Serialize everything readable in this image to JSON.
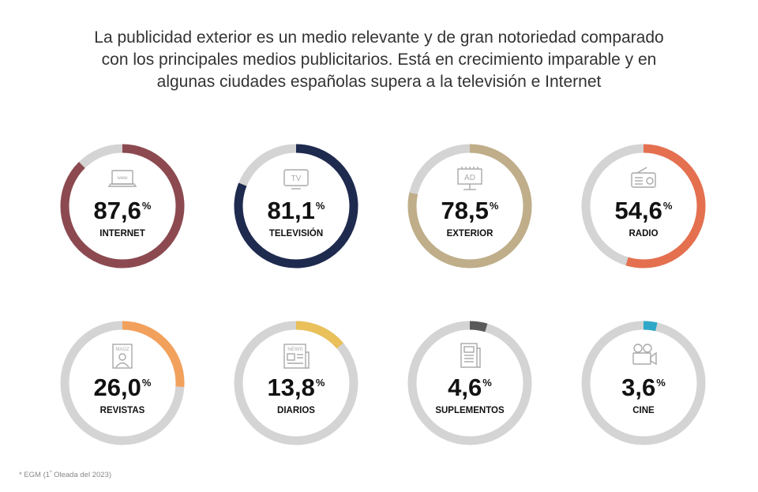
{
  "heading": {
    "line1": "La publicidad exterior es un medio relevante y de gran notoriedad comparado",
    "line2": "con los principales medios publicitarios. Está en crecimiento imparable y en",
    "line3": "algunas ciudades españolas supera a la televisión e Internet"
  },
  "footnote": {
    "before": "* EGM (1",
    "sup": "ª",
    "after": " Oleada del 2023)"
  },
  "colors": {
    "track": "#d4d4d4",
    "text": "#111111",
    "icon": "#a9a9a9"
  },
  "chart_data": {
    "type": "donut",
    "unit": "%",
    "items": [
      {
        "label": "INTERNET",
        "value": 87.6,
        "value_text": "87,6",
        "color": "#8c4a50",
        "icon": "www-laptop-icon",
        "icon_text": "www"
      },
      {
        "label": "TELEVISIÓN",
        "value": 81.1,
        "value_text": "81,1",
        "color": "#1f2a4f",
        "icon": "tv-icon",
        "icon_text": "TV"
      },
      {
        "label": "EXTERIOR",
        "value": 78.5,
        "value_text": "78,5",
        "color": "#bfae89",
        "icon": "billboard-icon",
        "icon_text": "AD"
      },
      {
        "label": "RADIO",
        "value": 54.6,
        "value_text": "54,6",
        "color": "#e4704f",
        "icon": "radio-icon",
        "icon_text": ""
      },
      {
        "label": "REVISTAS",
        "value": 26.0,
        "value_text": "26,0",
        "color": "#f2a15c",
        "icon": "magazine-icon",
        "icon_text": "MAGZ"
      },
      {
        "label": "DIARIOS",
        "value": 13.8,
        "value_text": "13,8",
        "color": "#e9c05a",
        "icon": "newspaper-icon",
        "icon_text": "NEWS"
      },
      {
        "label": "SUPLEMENTOS",
        "value": 4.6,
        "value_text": "4,6",
        "color": "#5a5a5a",
        "icon": "supplement-icon",
        "icon_text": ""
      },
      {
        "label": "CINE",
        "value": 3.6,
        "value_text": "3,6",
        "color": "#2fa8c8",
        "icon": "film-camera-icon",
        "icon_text": ""
      }
    ]
  }
}
